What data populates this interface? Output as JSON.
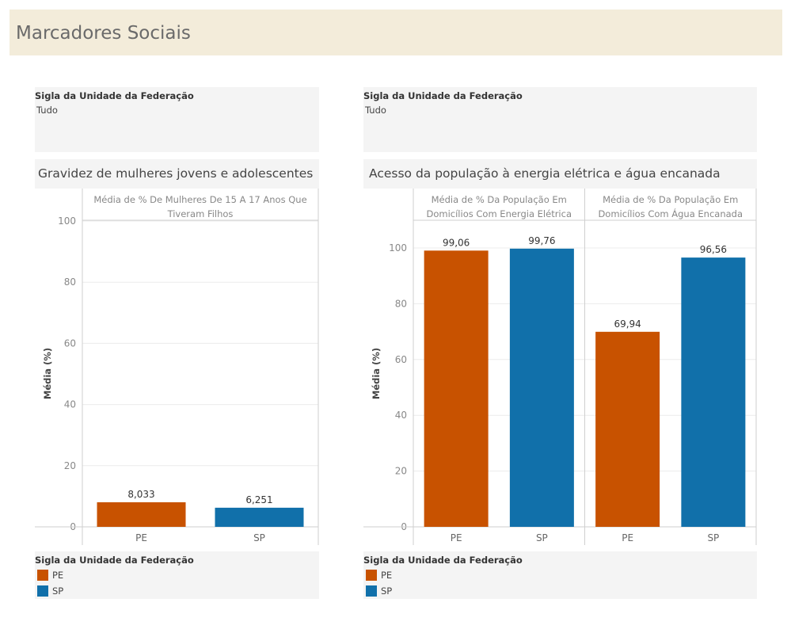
{
  "header": {
    "title": "Marcadores Sociais"
  },
  "colors": {
    "PE": "#c85200",
    "SP": "#1170aa"
  },
  "left": {
    "filter": {
      "title": "Sigla da Unidade da Federação",
      "value": "Tudo"
    },
    "sheet_title": "Gravidez de mulheres jovens e adolescentes",
    "legend": {
      "title": "Sigla da Unidade da Federação",
      "items": [
        {
          "label": "PE",
          "color": "#c85200"
        },
        {
          "label": "SP",
          "color": "#1170aa"
        }
      ]
    }
  },
  "right": {
    "filter": {
      "title": "Sigla da Unidade da Federação",
      "value": "Tudo"
    },
    "sheet_title": "Acesso da população à energia elétrica e água encanada",
    "legend": {
      "title": "Sigla da Unidade da Federação",
      "items": [
        {
          "label": "PE",
          "color": "#c85200"
        },
        {
          "label": "SP",
          "color": "#1170aa"
        }
      ]
    }
  },
  "chart_data": [
    {
      "type": "bar",
      "ylabel": "Média (%)",
      "ylim": [
        0,
        110
      ],
      "yticks": [
        0,
        20,
        40,
        60,
        80,
        100
      ],
      "grid": true,
      "panels": [
        {
          "header": [
            "Média de % De Mulheres De 15 A 17 Anos Que",
            "Tiveram Filhos"
          ],
          "categories": [
            "PE",
            "SP"
          ],
          "values": [
            8.033,
            6.251
          ],
          "value_labels": [
            "8,033",
            "6,251"
          ]
        }
      ]
    },
    {
      "type": "bar",
      "ylabel": "Média (%)",
      "ylim": [
        0,
        108.5
      ],
      "yticks": [
        0,
        20,
        40,
        60,
        80,
        100
      ],
      "grid": true,
      "panels": [
        {
          "header": [
            "Média de % Da População Em",
            "Domicílios Com Energia Elétrica"
          ],
          "categories": [
            "PE",
            "SP"
          ],
          "values": [
            99.06,
            99.76
          ],
          "value_labels": [
            "99,06",
            "99,76"
          ]
        },
        {
          "header": [
            "Média de % Da População Em",
            "Domicílios Com Água Encanada"
          ],
          "categories": [
            "PE",
            "SP"
          ],
          "values": [
            69.94,
            96.56
          ],
          "value_labels": [
            "69,94",
            "96,56"
          ]
        }
      ]
    }
  ]
}
